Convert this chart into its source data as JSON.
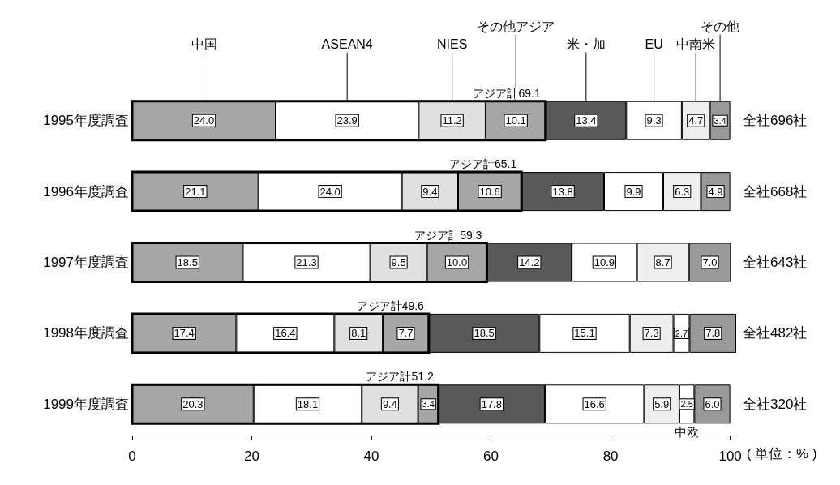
{
  "chart_data": {
    "type": "bar",
    "orientation": "horizontal",
    "stacked": true,
    "xlabel": "( 単位：% )",
    "categories": [
      "1995年度調査",
      "1996年度調査",
      "1997年度調査",
      "1998年度調査",
      "1999年度調査"
    ],
    "y2_categories": [
      "全社696社",
      "全社668社",
      "全社643社",
      "全社482社",
      "全社320社"
    ],
    "xlim": [
      0,
      101
    ],
    "xticks": [
      0,
      20,
      40,
      60,
      80,
      100
    ],
    "grid": false,
    "legend": false,
    "series": [
      {
        "name": "中国",
        "color": "#a6a6a6",
        "values": [
          24.0,
          21.1,
          18.5,
          17.4,
          20.3
        ],
        "value_labels": [
          "24.0",
          "21.1",
          "18.5",
          "17.4",
          "20.3"
        ]
      },
      {
        "name": "ASEAN4",
        "color": "#ffffff",
        "values": [
          23.9,
          24.0,
          21.3,
          16.4,
          18.1
        ],
        "value_labels": [
          "23.9",
          "24.0",
          "21.3",
          "16.4",
          "18.1"
        ]
      },
      {
        "name": "NIES",
        "color": "#e0e0e0",
        "values": [
          11.2,
          9.4,
          9.5,
          8.1,
          9.4
        ],
        "value_labels": [
          "11.2",
          "9.4",
          "9.5",
          "8.1",
          "9.4"
        ]
      },
      {
        "name": "その他アジア",
        "color": "#a6a6a6",
        "values": [
          10.1,
          10.6,
          10.0,
          7.7,
          3.4
        ],
        "value_labels": [
          "10.1",
          "10.6",
          "10.0",
          "7.7",
          "3.4"
        ]
      },
      {
        "name": "米・加",
        "color": "#595959",
        "values": [
          13.4,
          13.8,
          14.2,
          18.5,
          17.8
        ],
        "value_labels": [
          "13.4",
          "13.8",
          "14.2",
          "18.5",
          "17.8"
        ]
      },
      {
        "name": "EU",
        "color": "#ffffff",
        "values": [
          9.3,
          9.9,
          10.9,
          15.1,
          16.6
        ],
        "value_labels": [
          "9.3",
          "9.9",
          "10.9",
          "15.1",
          "16.6"
        ]
      },
      {
        "name": "中南米",
        "color": "#eeeeee",
        "values": [
          4.7,
          6.3,
          8.7,
          7.3,
          5.9
        ],
        "value_labels": [
          "4.7",
          "6.3",
          "8.7",
          "7.3",
          "5.9"
        ]
      },
      {
        "name": "中欧",
        "color": "#ffffff",
        "values": [
          null,
          null,
          null,
          2.7,
          2.5
        ],
        "value_labels": [
          null,
          null,
          null,
          "2.7",
          "2.5"
        ]
      },
      {
        "name": "その他",
        "color": "#999999",
        "values": [
          3.4,
          4.9,
          7.0,
          7.8,
          6.0
        ],
        "value_labels": [
          "3.4",
          "4.9",
          "7.0",
          "7.8",
          "6.0"
        ]
      }
    ],
    "annotations": [
      {
        "text": "アジア計69.1",
        "x": 69.1,
        "y": "1995年度調査"
      },
      {
        "text": "アジア計65.1",
        "x": 65.1,
        "y": "1996年度調査"
      },
      {
        "text": "アジア計59.3",
        "x": 59.3,
        "y": "1997年度調査"
      },
      {
        "text": "アジア計49.6",
        "x": 49.6,
        "y": "1998年度調査"
      },
      {
        "text": "アジア計51.2",
        "x": 51.2,
        "y": "1999年度調査"
      }
    ]
  }
}
